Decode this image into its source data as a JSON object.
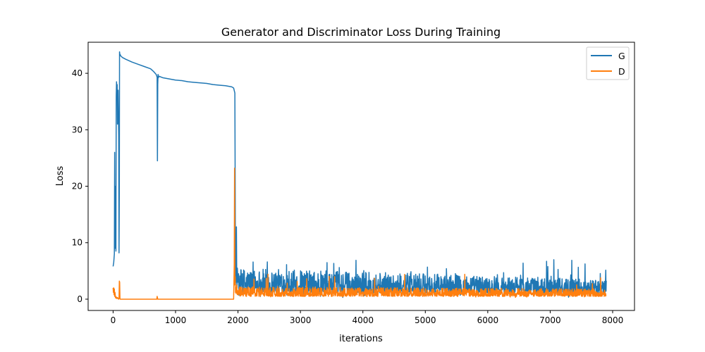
{
  "chart_data": {
    "type": "line",
    "title": "Generator and Discriminator Loss During Training",
    "xlabel": "iterations",
    "ylabel": "Loss",
    "xlim": [
      -400,
      8350
    ],
    "ylim": [
      -2,
      45.5
    ],
    "xticks": [
      0,
      1000,
      2000,
      3000,
      4000,
      5000,
      6000,
      7000,
      8000
    ],
    "yticks": [
      0,
      10,
      20,
      30,
      40
    ],
    "grid": false,
    "legend_position": "top-right",
    "series": [
      {
        "name": "G",
        "color": "#1f77b4",
        "x": [
          0,
          10,
          20,
          25,
          30,
          35,
          40,
          45,
          50,
          55,
          60,
          65,
          70,
          75,
          80,
          85,
          90,
          95,
          100,
          103,
          106,
          110,
          115,
          120,
          150,
          200,
          300,
          400,
          500,
          600,
          650,
          690,
          705,
          710,
          715,
          720,
          725,
          730,
          800,
          900,
          1000,
          1100,
          1200,
          1300,
          1400,
          1500,
          1600,
          1700,
          1800,
          1900,
          1930,
          1950,
          1955,
          1960,
          1965,
          1970,
          1975,
          1980,
          1985,
          1990,
          2000,
          2010
        ],
        "y": [
          5.8,
          6.5,
          8,
          26,
          9,
          12,
          20,
          8.5,
          36,
          38.5,
          37,
          38,
          31,
          36,
          37,
          33,
          29,
          8.2,
          20,
          43.8,
          43.5,
          43.2,
          43.3,
          43.1,
          42.8,
          42.5,
          42,
          41.6,
          41.2,
          40.8,
          40.3,
          39.8,
          39.3,
          24.5,
          38,
          39.8,
          39.2,
          39.5,
          39.2,
          39.0,
          38.8,
          38.7,
          38.5,
          38.4,
          38.3,
          38.2,
          38.0,
          37.9,
          37.8,
          37.6,
          37.4,
          36.5,
          20,
          2.5,
          8,
          3,
          12.8,
          4,
          2,
          5.5,
          3,
          4.5
        ],
        "noise_region": {
          "x_range": [
            2010,
            7900
          ],
          "band_min_start": 1.2,
          "band_min_end": 1.0,
          "band_max_start": 5.5,
          "band_max_end": 3.5,
          "spike_max": 7.2,
          "dip_min": 0.1
        }
      },
      {
        "name": "D",
        "color": "#ff7f0e",
        "x": [
          0,
          5,
          10,
          15,
          20,
          25,
          30,
          40,
          50,
          60,
          70,
          80,
          90,
          95,
          100,
          105,
          110,
          115,
          120,
          200,
          700,
          705,
          710,
          715,
          720,
          1900,
          1930,
          1940,
          1945,
          1950,
          1955,
          1960,
          1965,
          1970,
          1980,
          1990,
          2000
        ],
        "y": [
          2.0,
          1.2,
          2.0,
          0.8,
          1.8,
          0.5,
          1.2,
          0.2,
          0.4,
          0.1,
          0.3,
          0.1,
          0.0,
          0.1,
          3.2,
          3.0,
          0.1,
          0.0,
          0.0,
          0.0,
          0.0,
          0.5,
          0.3,
          0.0,
          0.0,
          0.0,
          0.0,
          6.2,
          23.2,
          2.5,
          4.0,
          1.2,
          2.0,
          1.0,
          2.5,
          0.8,
          1.5
        ],
        "noise_region": {
          "x_range": [
            2000,
            7900
          ],
          "band_min": 0.5,
          "band_max_start": 2.2,
          "band_max_end": 1.8,
          "spike_max": 4.5,
          "dip_min": 0.3
        }
      }
    ]
  }
}
